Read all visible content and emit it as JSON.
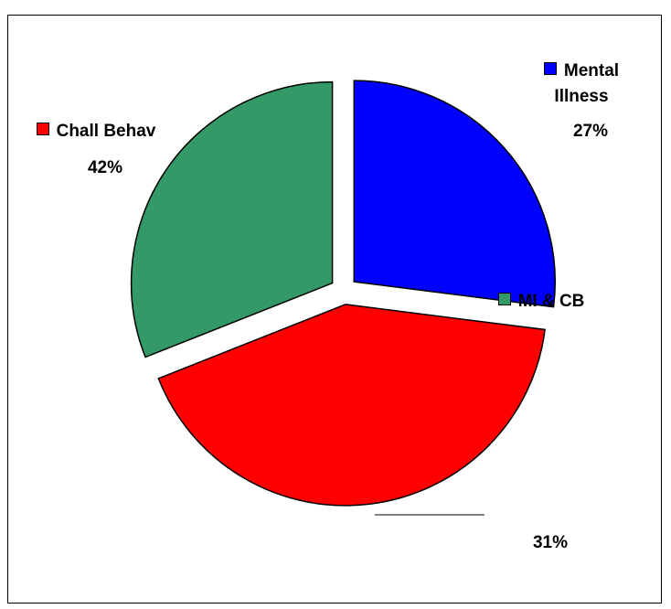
{
  "chart_data": {
    "type": "pie",
    "categories": [
      "Mental Illness",
      "Chall Behav",
      "MI & CB"
    ],
    "values": [
      27,
      42,
      31
    ],
    "value_labels": [
      "27%",
      "42%",
      "31%"
    ],
    "colors": [
      "#0000ff",
      "#ff0000",
      "#339966"
    ],
    "legend": true
  }
}
